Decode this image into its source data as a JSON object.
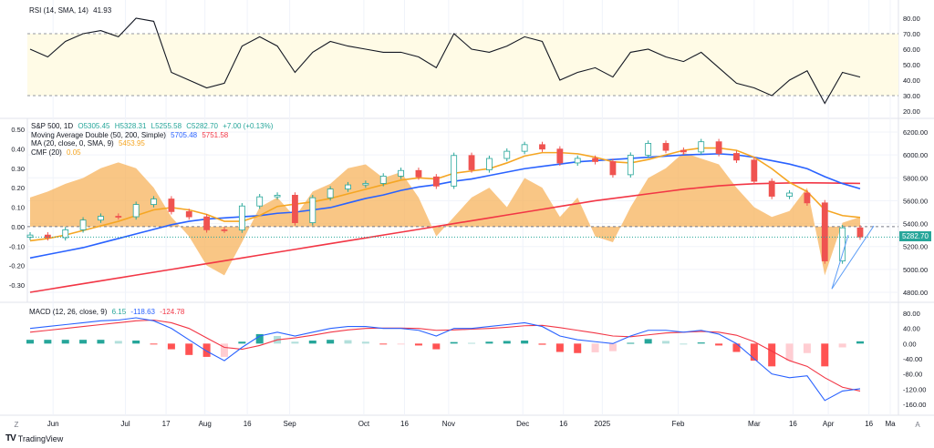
{
  "rsi_legend": {
    "title": "RSI (14, SMA, 14)",
    "value": "41.93"
  },
  "main_legend": {
    "symbol": "S&P 500, 1D",
    "open": "O5305.45",
    "high": "H5328.31",
    "low": "L5255.58",
    "close": "C5282.70",
    "change": "+7.00 (+0.13%)",
    "ma_double": "Moving Average Double (50, 200, Simple)",
    "ma50_value": "5705.48",
    "ma200_value": "5751.58",
    "ma20": "MA (20, close, 0, SMA, 9)",
    "ma20_value": "5453.95",
    "cmf": "CMF (20)",
    "cmf_value": "0.05"
  },
  "macd_legend": {
    "title": "MACD (12, 26, close, 9)",
    "hist": "6.15",
    "macd": "-118.63",
    "signal": "-124.78"
  },
  "last_price": "5282.70",
  "footer": {
    "brand": "TradingView"
  },
  "colors": {
    "up": "#26a69a",
    "down": "#ef5350",
    "ma50": "#2962ff",
    "ma200": "#f23645",
    "ma20": "#f5a623",
    "cmf": "#f7b35c",
    "rsi": "#131722",
    "macd": "#2962ff",
    "signal": "#f23645"
  },
  "chart_data": {
    "type": "line",
    "title": "S&P 500, 1D",
    "x_ticks": [
      {
        "label": "Jun",
        "i": 1.3
      },
      {
        "label": "Jul",
        "i": 5.4
      },
      {
        "label": "17",
        "i": 7.7
      },
      {
        "label": "Aug",
        "i": 9.9
      },
      {
        "label": "16",
        "i": 12.3
      },
      {
        "label": "Sep",
        "i": 14.7
      },
      {
        "label": "Oct",
        "i": 18.9
      },
      {
        "label": "16",
        "i": 21.2
      },
      {
        "label": "Nov",
        "i": 23.7
      },
      {
        "label": "Dec",
        "i": 27.9
      },
      {
        "label": "16",
        "i": 30.2
      },
      {
        "label": "2025",
        "i": 32.4
      },
      {
        "label": "Feb",
        "i": 36.7
      },
      {
        "label": "Mar",
        "i": 41.0
      },
      {
        "label": "16",
        "i": 43.2
      },
      {
        "label": "Apr",
        "i": 45.2
      },
      {
        "label": "16",
        "i": 47.5
      },
      {
        "label": "Ma",
        "i": 49.6
      }
    ],
    "price_axis": {
      "ticks": [
        "4800.00",
        "5000.00",
        "5200.00",
        "5400.00",
        "5600.00",
        "5800.00",
        "6000.00",
        "6200.00"
      ],
      "range": [
        4800,
        6200
      ]
    },
    "cmf_axis": {
      "ticks": [
        "-0.30",
        "-0.20",
        "-0.10",
        "0.00",
        "0.10",
        "0.20",
        "0.30",
        "0.40",
        "0.50"
      ],
      "range": [
        -0.3,
        0.5
      ]
    },
    "rsi_axis": {
      "ticks": [
        "20.00",
        "30.00",
        "40.00",
        "50.00",
        "60.00",
        "70.00",
        "80.00"
      ],
      "range": [
        20,
        80
      ],
      "bands": [
        30,
        70
      ]
    },
    "macd_axis": {
      "ticks": [
        "-160.00",
        "-120.00",
        "-80.00",
        "-40.00",
        "0.00",
        "40.00",
        "80.00"
      ],
      "range": [
        -160,
        80
      ]
    },
    "close": [
      5300,
      5277,
      5346,
      5431,
      5464,
      5460,
      5567,
      5615,
      5505,
      5459,
      5346,
      5344,
      5554,
      5634,
      5648,
      5408,
      5626,
      5702,
      5738,
      5751,
      5815,
      5864,
      5808,
      5728,
      5995,
      5870,
      5969,
      6032,
      6090,
      6051,
      5930,
      5970,
      5942,
      5827,
      5997,
      6101,
      6040,
      6026,
      6115,
      6013,
      5955,
      5770,
      5639,
      5667,
      5581,
      5074,
      5363,
      5283
    ],
    "sma50": [
      5100,
      5130,
      5160,
      5190,
      5230,
      5270,
      5310,
      5350,
      5390,
      5420,
      5440,
      5450,
      5460,
      5470,
      5490,
      5500,
      5520,
      5540,
      5580,
      5620,
      5650,
      5690,
      5720,
      5740,
      5770,
      5790,
      5820,
      5850,
      5880,
      5900,
      5920,
      5940,
      5950,
      5960,
      5970,
      5980,
      5990,
      6000,
      6005,
      6010,
      6000,
      5980,
      5950,
      5920,
      5880,
      5810,
      5750,
      5705
    ],
    "sma200": [
      4800,
      4825,
      4850,
      4875,
      4900,
      4925,
      4950,
      4975,
      5000,
      5025,
      5050,
      5075,
      5100,
      5125,
      5150,
      5175,
      5200,
      5225,
      5250,
      5275,
      5300,
      5325,
      5350,
      5375,
      5400,
      5425,
      5450,
      5475,
      5500,
      5525,
      5550,
      5575,
      5600,
      5620,
      5640,
      5660,
      5680,
      5700,
      5715,
      5730,
      5740,
      5748,
      5752,
      5755,
      5756,
      5755,
      5753,
      5751
    ],
    "ma20": [
      5250,
      5270,
      5300,
      5340,
      5380,
      5420,
      5470,
      5520,
      5540,
      5520,
      5480,
      5420,
      5420,
      5470,
      5550,
      5570,
      5590,
      5620,
      5660,
      5700,
      5740,
      5780,
      5800,
      5790,
      5840,
      5860,
      5880,
      5930,
      5990,
      6020,
      6020,
      6010,
      5980,
      5940,
      5930,
      5960,
      6000,
      6040,
      6060,
      6060,
      6040,
      5980,
      5880,
      5760,
      5680,
      5520,
      5470,
      5454
    ],
    "cmf": [
      0.15,
      0.18,
      0.22,
      0.25,
      0.3,
      0.33,
      0.3,
      0.2,
      0.05,
      -0.05,
      -0.2,
      -0.25,
      -0.08,
      0.1,
      0.15,
      0.05,
      0.18,
      0.22,
      0.3,
      0.32,
      0.25,
      0.28,
      0.15,
      -0.05,
      0.05,
      0.15,
      0.2,
      0.1,
      0.25,
      0.2,
      0.05,
      0.15,
      -0.05,
      -0.08,
      0.1,
      0.25,
      0.3,
      0.38,
      0.35,
      0.32,
      0.2,
      0.1,
      0.05,
      0.08,
      0.2,
      -0.25,
      0.02,
      0.05
    ],
    "rsi": [
      60,
      55,
      65,
      70,
      72,
      68,
      80,
      78,
      45,
      40,
      35,
      38,
      62,
      68,
      62,
      45,
      58,
      65,
      62,
      60,
      58,
      58,
      55,
      48,
      70,
      60,
      58,
      62,
      68,
      65,
      40,
      45,
      48,
      42,
      58,
      60,
      55,
      52,
      58,
      48,
      38,
      35,
      30,
      40,
      46,
      25,
      45,
      42
    ],
    "macd": [
      40,
      45,
      50,
      55,
      60,
      62,
      68,
      60,
      40,
      10,
      -20,
      -45,
      -10,
      20,
      30,
      20,
      30,
      40,
      45,
      45,
      40,
      40,
      35,
      20,
      40,
      40,
      45,
      50,
      55,
      45,
      20,
      10,
      5,
      0,
      20,
      35,
      35,
      30,
      35,
      25,
      0,
      -40,
      -80,
      -90,
      -85,
      -150,
      -125,
      -119
    ],
    "signal": [
      30,
      35,
      40,
      45,
      50,
      55,
      60,
      62,
      55,
      40,
      15,
      -10,
      -15,
      -5,
      10,
      15,
      22,
      30,
      36,
      40,
      41,
      41,
      40,
      35,
      36,
      38,
      40,
      43,
      47,
      48,
      42,
      35,
      28,
      20,
      18,
      23,
      28,
      30,
      32,
      30,
      22,
      5,
      -20,
      -45,
      -60,
      -90,
      -115,
      -125
    ]
  }
}
